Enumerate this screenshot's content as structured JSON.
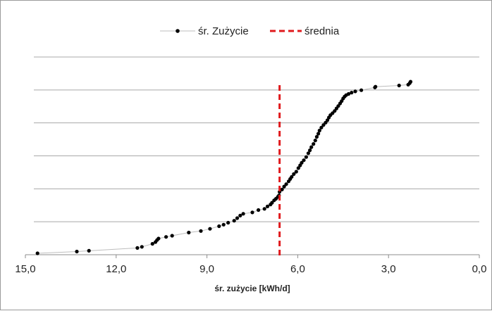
{
  "chart_data": {
    "type": "line",
    "title": "",
    "xlabel": "śr. zużycie [kWh/d]",
    "ylabel": "",
    "xlim": [
      15.0,
      0.0
    ],
    "ylim": [
      0,
      1
    ],
    "x_reversed": true,
    "grid": "horizontal",
    "legend_placement": "top",
    "x_ticks": [
      15.0,
      12.0,
      9.0,
      6.0,
      3.0,
      0.0
    ],
    "x_tick_labels": [
      "15,0",
      "12,0",
      "9,0",
      "6,0",
      "3,0",
      "0,0"
    ],
    "y_gridlines": [
      0,
      0.1667,
      0.3333,
      0.5,
      0.6667,
      0.8333,
      1.0
    ],
    "legend": {
      "series_label": "śr. Zużycie",
      "mean_label": "średnia"
    },
    "colors": {
      "series": "#000000",
      "series_line": "#bdbdbd",
      "mean": "#e0191c",
      "grid": "#a8a8a8",
      "axis": "#8c8c8c"
    },
    "mean_value": 6.6,
    "series": [
      {
        "name": "śr. Zużycie",
        "points": [
          [
            14.6,
            0.007
          ],
          [
            13.3,
            0.016
          ],
          [
            12.9,
            0.02
          ],
          [
            11.3,
            0.034
          ],
          [
            11.15,
            0.04
          ],
          [
            10.8,
            0.055
          ],
          [
            10.7,
            0.064
          ],
          [
            10.65,
            0.074
          ],
          [
            10.6,
            0.082
          ],
          [
            10.35,
            0.09
          ],
          [
            10.15,
            0.096
          ],
          [
            9.6,
            0.112
          ],
          [
            9.2,
            0.12
          ],
          [
            8.9,
            0.131
          ],
          [
            8.6,
            0.144
          ],
          [
            8.45,
            0.152
          ],
          [
            8.3,
            0.162
          ],
          [
            8.1,
            0.172
          ],
          [
            8.0,
            0.185
          ],
          [
            7.9,
            0.198
          ],
          [
            7.8,
            0.207
          ],
          [
            7.5,
            0.214
          ],
          [
            7.3,
            0.226
          ],
          [
            7.1,
            0.232
          ],
          [
            7.0,
            0.244
          ],
          [
            6.9,
            0.254
          ],
          [
            6.85,
            0.263
          ],
          [
            6.78,
            0.275
          ],
          [
            6.72,
            0.283
          ],
          [
            6.66,
            0.292
          ],
          [
            6.62,
            0.3
          ],
          [
            6.6,
            0.318
          ],
          [
            6.52,
            0.33
          ],
          [
            6.45,
            0.345
          ],
          [
            6.38,
            0.357
          ],
          [
            6.3,
            0.371
          ],
          [
            6.25,
            0.383
          ],
          [
            6.2,
            0.394
          ],
          [
            6.13,
            0.408
          ],
          [
            6.05,
            0.42
          ],
          [
            5.98,
            0.438
          ],
          [
            5.92,
            0.452
          ],
          [
            5.87,
            0.465
          ],
          [
            5.8,
            0.478
          ],
          [
            5.72,
            0.494
          ],
          [
            5.65,
            0.513
          ],
          [
            5.6,
            0.528
          ],
          [
            5.55,
            0.544
          ],
          [
            5.48,
            0.56
          ],
          [
            5.42,
            0.578
          ],
          [
            5.37,
            0.596
          ],
          [
            5.32,
            0.612
          ],
          [
            5.28,
            0.628
          ],
          [
            5.22,
            0.643
          ],
          [
            5.15,
            0.656
          ],
          [
            5.08,
            0.668
          ],
          [
            5.02,
            0.68
          ],
          [
            4.97,
            0.694
          ],
          [
            4.92,
            0.706
          ],
          [
            4.85,
            0.716
          ],
          [
            4.78,
            0.727
          ],
          [
            4.72,
            0.74
          ],
          [
            4.66,
            0.752
          ],
          [
            4.6,
            0.765
          ],
          [
            4.55,
            0.777
          ],
          [
            4.5,
            0.79
          ],
          [
            4.45,
            0.8
          ],
          [
            4.4,
            0.807
          ],
          [
            4.32,
            0.813
          ],
          [
            4.22,
            0.82
          ],
          [
            4.1,
            0.826
          ],
          [
            3.9,
            0.832
          ],
          [
            3.45,
            0.846
          ],
          [
            3.43,
            0.85
          ],
          [
            2.65,
            0.856
          ],
          [
            2.35,
            0.86
          ],
          [
            2.3,
            0.868
          ],
          [
            2.27,
            0.875
          ]
        ]
      }
    ]
  }
}
